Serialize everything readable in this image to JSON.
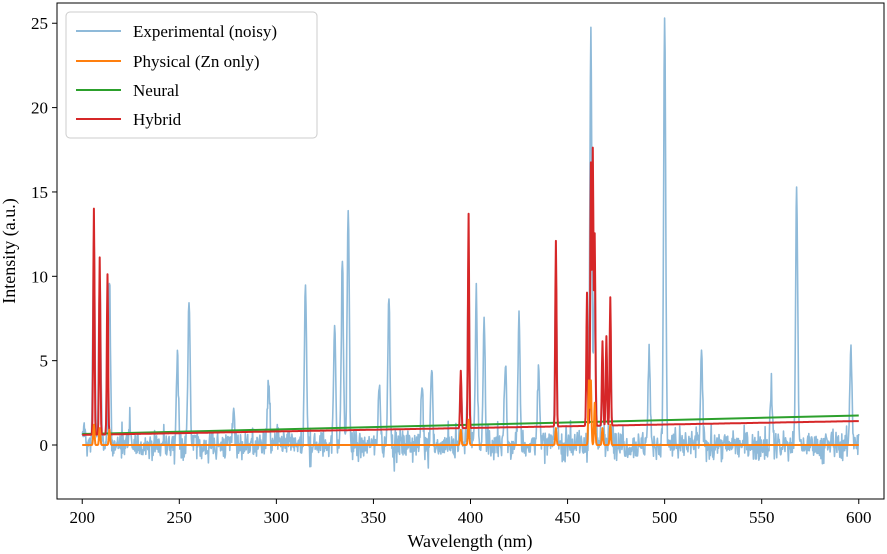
{
  "chart_data": {
    "type": "line",
    "title": "",
    "xlabel": "Wavelength (nm)",
    "ylabel": "Intensity (a.u.)",
    "xlim": [
      187,
      613
    ],
    "ylim": [
      -3.2,
      26.2
    ],
    "xticks": [
      200,
      250,
      300,
      350,
      400,
      450,
      500,
      550,
      600
    ],
    "yticks": [
      0,
      5,
      10,
      15,
      20,
      25
    ],
    "grid": false,
    "legend_position": "top-left",
    "series": [
      {
        "name": "Experimental (noisy)",
        "color": "#8fbad9",
        "noise_amplitude": 0.75,
        "peaks": [
          [
            201,
            1.0
          ],
          [
            206,
            12.5
          ],
          [
            209,
            10.0
          ],
          [
            214,
            9.8
          ],
          [
            249,
            5.3
          ],
          [
            255,
            8.8
          ],
          [
            278,
            2.3
          ],
          [
            296,
            3.8
          ],
          [
            315,
            9.2
          ],
          [
            330,
            7.3
          ],
          [
            334,
            10.8
          ],
          [
            337,
            14.3
          ],
          [
            353,
            4.2
          ],
          [
            358,
            9.1
          ],
          [
            375,
            3.8
          ],
          [
            380,
            4.6
          ],
          [
            395,
            4.0
          ],
          [
            399,
            11.0
          ],
          [
            403,
            8.7
          ],
          [
            407,
            7.1
          ],
          [
            418,
            4.7
          ],
          [
            425,
            7.6
          ],
          [
            435,
            5.2
          ],
          [
            444,
            10.0
          ],
          [
            462,
            24.3
          ],
          [
            464,
            10.0
          ],
          [
            468,
            4.0
          ],
          [
            472,
            7.4
          ],
          [
            492,
            5.3
          ],
          [
            500,
            25.4
          ],
          [
            519,
            5.0
          ],
          [
            555,
            3.6
          ],
          [
            568,
            15.3
          ],
          [
            596,
            5.9
          ]
        ]
      },
      {
        "name": "Physical (Zn only)",
        "color": "#ff7f0e",
        "peaks": [
          [
            206,
            1.2
          ],
          [
            209,
            1.0
          ],
          [
            214,
            0.9
          ],
          [
            395,
            0.9
          ],
          [
            399,
            1.5
          ],
          [
            444,
            1.0
          ],
          [
            461,
            3.8
          ],
          [
            462,
            3.8
          ],
          [
            464,
            2.5
          ],
          [
            468,
            1.0
          ],
          [
            472,
            1.2
          ]
        ]
      },
      {
        "name": "Neural",
        "color": "#2ca02c",
        "x": [
          200,
          600
        ],
        "y": [
          0.65,
          1.75
        ]
      },
      {
        "name": "Hybrid",
        "color": "#d62728",
        "baseline_x": [
          200,
          600
        ],
        "baseline_y": [
          0.6,
          1.42
        ],
        "peaks": [
          [
            206,
            13.4
          ],
          [
            209,
            10.5
          ],
          [
            213,
            9.5
          ],
          [
            395,
            3.4
          ],
          [
            399,
            12.7
          ],
          [
            444,
            11.0
          ],
          [
            460,
            7.9
          ],
          [
            462,
            15.5
          ],
          [
            463,
            16.3
          ],
          [
            464,
            11.3
          ],
          [
            468,
            5.0
          ],
          [
            470,
            5.3
          ],
          [
            472,
            7.6
          ]
        ]
      }
    ]
  }
}
